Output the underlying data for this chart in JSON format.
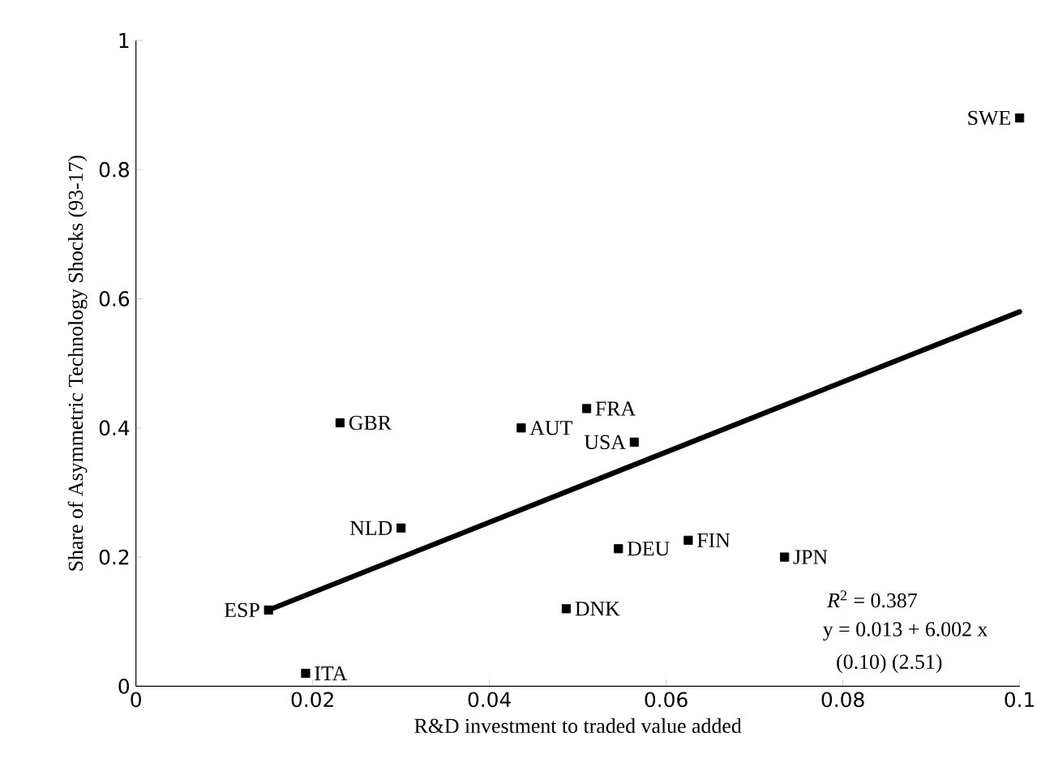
{
  "chart_data": {
    "type": "scatter",
    "xlabel": "R&D investment to traded value added",
    "ylabel": "Share of Asymmetric Technology Shocks (93-17)",
    "xlim": [
      0,
      0.1
    ],
    "ylim": [
      0,
      1
    ],
    "xticks": [
      0,
      0.02,
      0.04,
      0.06,
      0.08,
      0.1
    ],
    "yticks": [
      0,
      0.2,
      0.4,
      0.6,
      0.8,
      1
    ],
    "grid": false,
    "series": [
      {
        "marker": "square",
        "color": "#000000",
        "x": [
          0.015,
          0.0192,
          0.0231,
          0.03,
          0.0436,
          0.051,
          0.0564,
          0.0546,
          0.0487,
          0.0625,
          0.0734,
          0.1
        ],
        "values": [
          0.118,
          0.02,
          0.408,
          0.245,
          0.4,
          0.43,
          0.378,
          0.213,
          0.12,
          0.226,
          0.2,
          0.88
        ]
      },
      {
        "type": "line",
        "marker": "none",
        "color": "#000000",
        "x": [
          0.015,
          0.1
        ],
        "values": [
          0.118,
          0.58
        ]
      }
    ],
    "annotations": [
      {
        "text": "ESP",
        "x": 0.015,
        "y": 0.118
      },
      {
        "text": "ITA",
        "x": 0.0192,
        "y": 0.02
      },
      {
        "text": "GBR",
        "x": 0.0231,
        "y": 0.408
      },
      {
        "text": "NLD",
        "x": 0.03,
        "y": 0.245
      },
      {
        "text": "AUT",
        "x": 0.0436,
        "y": 0.4
      },
      {
        "text": "FRA",
        "x": 0.051,
        "y": 0.43
      },
      {
        "text": "USA",
        "x": 0.0564,
        "y": 0.378
      },
      {
        "text": "DEU",
        "x": 0.0546,
        "y": 0.213
      },
      {
        "text": "DNK",
        "x": 0.0487,
        "y": 0.12
      },
      {
        "text": "FIN",
        "x": 0.0625,
        "y": 0.226
      },
      {
        "text": "JPN",
        "x": 0.0734,
        "y": 0.2
      },
      {
        "text": "SWE",
        "x": 0.1,
        "y": 0.88
      },
      "*R*$^{2}$ = 0.387",
      "y = 0.013 + 6.002 x",
      "(0.10)     (2.51)"
    ]
  }
}
